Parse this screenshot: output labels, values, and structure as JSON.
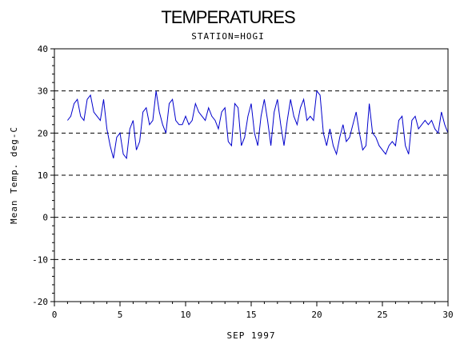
{
  "chart_data": {
    "type": "line",
    "title": "TEMPERATURES",
    "subtitle": "STATION=HOGI",
    "xlabel": "SEP 1997",
    "ylabel": "Mean Temp. deg-C",
    "xlim": [
      0,
      30
    ],
    "ylim": [
      -20,
      40
    ],
    "x_ticks": [
      0,
      5,
      10,
      15,
      20,
      25,
      30
    ],
    "y_ticks": [
      -20,
      -10,
      0,
      10,
      20,
      30,
      40
    ],
    "y_tick_labels": [
      "-20",
      "-10",
      "0",
      "10",
      "20",
      "30",
      "40"
    ],
    "grid": "horizontal dashed at y ticks",
    "line_color": "#0000cc",
    "series": [
      {
        "x": [
          1.0,
          1.25,
          1.5,
          1.75,
          2.0,
          2.25,
          2.5,
          2.75,
          3.0,
          3.25,
          3.5,
          3.75,
          4.0,
          4.25,
          4.5,
          4.75,
          5.0,
          5.25,
          5.5,
          5.75,
          6.0,
          6.25,
          6.5,
          6.75,
          7.0,
          7.25,
          7.5,
          7.75,
          8.0,
          8.25,
          8.5,
          8.75,
          9.0,
          9.25,
          9.5,
          9.75,
          10.0,
          10.25,
          10.5,
          10.75,
          11.0,
          11.25,
          11.5,
          11.75,
          12.0,
          12.25,
          12.5,
          12.75,
          13.0,
          13.25,
          13.5,
          13.75,
          14.0,
          14.25,
          14.5,
          14.75,
          15.0,
          15.25,
          15.5,
          15.75,
          16.0,
          16.25,
          16.5,
          16.75,
          17.0,
          17.25,
          17.5,
          17.75,
          18.0,
          18.25,
          18.5,
          18.75,
          19.0,
          19.25,
          19.5,
          19.75,
          20.0,
          20.25,
          20.5,
          20.75,
          21.0,
          21.25,
          21.5,
          21.75,
          22.0,
          22.25,
          22.5,
          22.75,
          23.0,
          23.25,
          23.5,
          23.75,
          24.0,
          24.25,
          24.5,
          24.75,
          25.0,
          25.25,
          25.5,
          25.75,
          26.0,
          26.25,
          26.5,
          26.75,
          27.0,
          27.25,
          27.5,
          27.75,
          28.0,
          28.25,
          28.5,
          28.75,
          29.0,
          29.25,
          29.5,
          29.75,
          30.0
        ],
        "values": [
          23,
          24,
          27,
          28,
          24,
          23,
          28,
          29,
          25,
          24,
          23,
          28,
          21,
          17,
          14,
          19,
          20,
          15,
          14,
          21,
          23,
          16,
          18,
          25,
          26,
          22,
          23,
          30,
          25,
          22,
          20,
          27,
          28,
          23,
          22,
          22,
          24,
          22,
          23,
          27,
          25,
          24,
          23,
          26,
          24,
          23,
          21,
          25,
          26,
          18,
          17,
          27,
          26,
          17,
          19,
          24,
          27,
          20,
          17,
          24,
          28,
          23,
          17,
          25,
          28,
          22,
          17,
          23,
          28,
          24,
          22,
          26,
          28,
          23,
          24,
          23,
          30,
          29,
          20,
          17,
          21,
          17,
          15,
          19,
          22,
          18,
          19,
          22,
          25,
          20,
          16,
          17,
          27,
          20,
          19,
          17,
          16,
          15,
          17,
          18,
          17,
          23,
          24,
          17,
          15,
          23,
          24,
          21,
          22,
          23,
          22,
          23,
          21,
          20,
          25,
          22,
          20
        ]
      }
    ]
  }
}
